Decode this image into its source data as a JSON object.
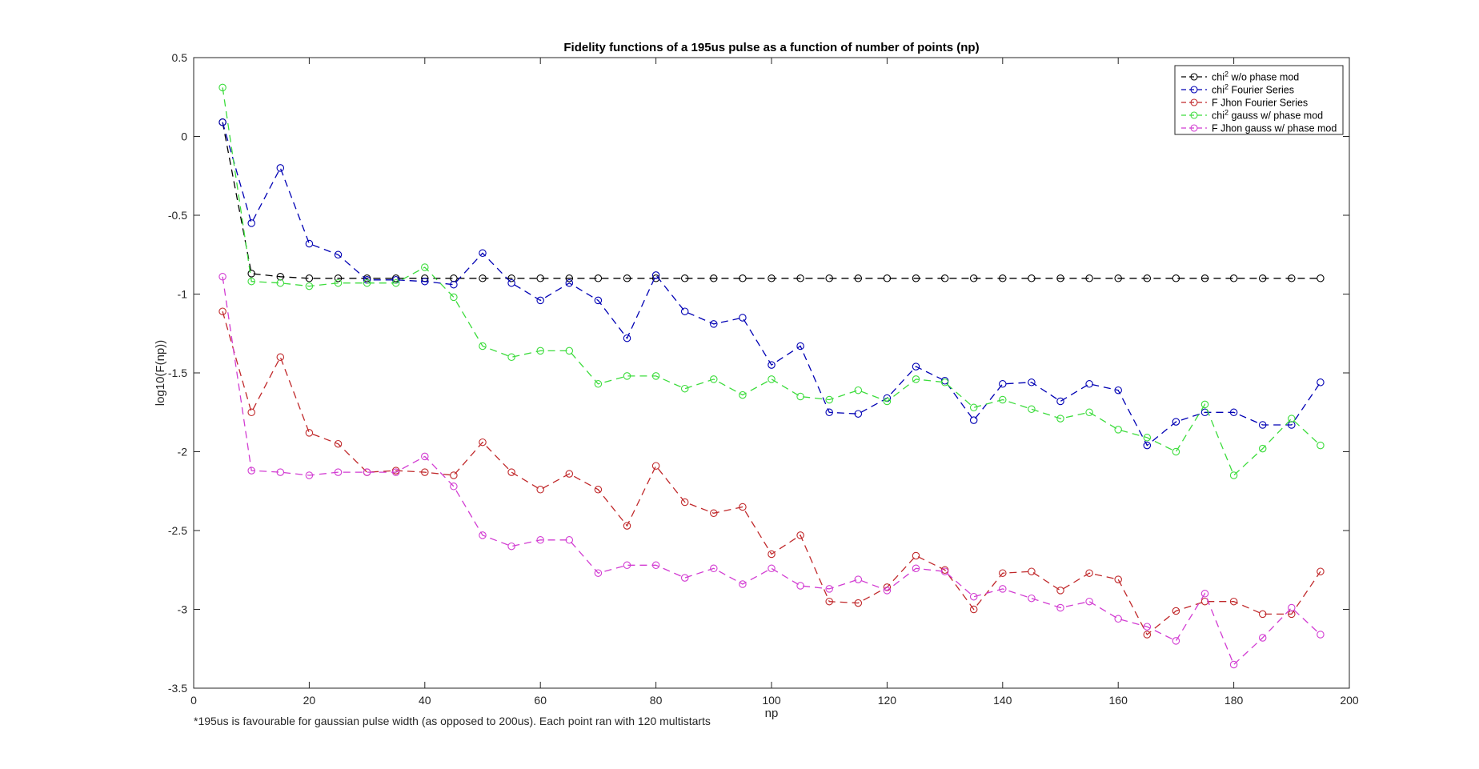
{
  "chart_data": {
    "type": "line",
    "title": "Fidelity functions of a 195us pulse as a function of number of points (np)",
    "xlabel": "np",
    "ylabel": "log10(F(np))",
    "xlim": [
      0,
      200
    ],
    "ylim": [
      -3.5,
      0.5
    ],
    "xticks": [
      "0",
      "20",
      "40",
      "60",
      "80",
      "100",
      "120",
      "140",
      "160",
      "180",
      "200"
    ],
    "yticks": [
      "0.5",
      "0",
      "-0.5",
      "-1",
      "-1.5",
      "-2",
      "-2.5",
      "-3",
      "-3.5"
    ],
    "xtick_values": [
      0,
      20,
      40,
      60,
      80,
      100,
      120,
      140,
      160,
      180,
      200
    ],
    "ytick_values": [
      0.5,
      0,
      -0.5,
      -1,
      -1.5,
      -2,
      -2.5,
      -3,
      -3.5
    ],
    "grid": false,
    "legend_position": "top-right",
    "annotation": "*195us is favourable for gaussian pulse width (as opposed to 200us). Each point ran with 120 multistarts",
    "x": [
      5,
      10,
      15,
      20,
      25,
      30,
      35,
      40,
      45,
      50,
      55,
      60,
      65,
      70,
      75,
      80,
      85,
      90,
      95,
      100,
      105,
      110,
      115,
      120,
      125,
      130,
      135,
      140,
      145,
      150,
      155,
      160,
      165,
      170,
      175,
      180,
      185,
      190,
      195
    ],
    "series": [
      {
        "name_main": "chi",
        "name_sup": "2",
        "name_rest": " w/o phase mod",
        "color": "#000000",
        "values": [
          0.09,
          -0.87,
          -0.89,
          -0.9,
          -0.9,
          -0.9,
          -0.9,
          -0.9,
          -0.9,
          -0.9,
          -0.9,
          -0.9,
          -0.9,
          -0.9,
          -0.9,
          -0.9,
          -0.9,
          -0.9,
          -0.9,
          -0.9,
          -0.9,
          -0.9,
          -0.9,
          -0.9,
          -0.9,
          -0.9,
          -0.9,
          -0.9,
          -0.9,
          -0.9,
          -0.9,
          -0.9,
          -0.9,
          -0.9,
          -0.9,
          -0.9,
          -0.9,
          -0.9,
          -0.9
        ]
      },
      {
        "name_main": "chi",
        "name_sup": "2",
        "name_rest": " Fourier Series",
        "color": "#0000b4",
        "values": [
          0.09,
          -0.55,
          -0.2,
          -0.68,
          -0.75,
          -0.91,
          -0.91,
          -0.92,
          -0.94,
          -0.74,
          -0.93,
          -1.04,
          -0.93,
          -1.04,
          -1.28,
          -0.88,
          -1.11,
          -1.19,
          -1.15,
          -1.45,
          -1.33,
          -1.75,
          -1.76,
          -1.66,
          -1.46,
          -1.55,
          -1.8,
          -1.57,
          -1.56,
          -1.68,
          -1.57,
          -1.61,
          -1.96,
          -1.81,
          -1.75,
          -1.75,
          -1.83,
          -1.83,
          -1.56
        ]
      },
      {
        "name_main": "F Jhon Fourier Series",
        "name_sup": "",
        "name_rest": "",
        "color": "#c0282a",
        "values": [
          -1.11,
          -1.75,
          -1.4,
          -1.88,
          -1.95,
          -2.13,
          -2.12,
          -2.13,
          -2.15,
          -1.94,
          -2.13,
          -2.24,
          -2.14,
          -2.24,
          -2.47,
          -2.09,
          -2.32,
          -2.39,
          -2.35,
          -2.65,
          -2.53,
          -2.95,
          -2.96,
          -2.86,
          -2.66,
          -2.75,
          -3.0,
          -2.77,
          -2.76,
          -2.88,
          -2.77,
          -2.81,
          -3.16,
          -3.01,
          -2.95,
          -2.95,
          -3.03,
          -3.03,
          -2.76
        ]
      },
      {
        "name_main": "chi",
        "name_sup": "2",
        "name_rest": " gauss w/ phase mod",
        "color": "#3cdc3c",
        "values": [
          0.31,
          -0.92,
          -0.93,
          -0.95,
          -0.93,
          -0.93,
          -0.93,
          -0.83,
          -1.02,
          -1.33,
          -1.4,
          -1.36,
          -1.36,
          -1.57,
          -1.52,
          -1.52,
          -1.6,
          -1.54,
          -1.64,
          -1.54,
          -1.65,
          -1.67,
          -1.61,
          -1.68,
          -1.54,
          -1.56,
          -1.72,
          -1.67,
          -1.73,
          -1.79,
          -1.75,
          -1.86,
          -1.91,
          -2.0,
          -1.7,
          -2.15,
          -1.98,
          -1.79,
          -1.96
        ]
      },
      {
        "name_main": "F Jhon gauss w/ phase mod",
        "name_sup": "",
        "name_rest": "",
        "color": "#d23cd2",
        "values": [
          -0.89,
          -2.12,
          -2.13,
          -2.15,
          -2.13,
          -2.13,
          -2.13,
          -2.03,
          -2.22,
          -2.53,
          -2.6,
          -2.56,
          -2.56,
          -2.77,
          -2.72,
          -2.72,
          -2.8,
          -2.74,
          -2.84,
          -2.74,
          -2.85,
          -2.87,
          -2.81,
          -2.88,
          -2.74,
          -2.76,
          -2.92,
          -2.87,
          -2.93,
          -2.99,
          -2.95,
          -3.06,
          -3.11,
          -3.2,
          -2.9,
          -3.35,
          -3.18,
          -2.99,
          -3.16
        ]
      }
    ]
  }
}
